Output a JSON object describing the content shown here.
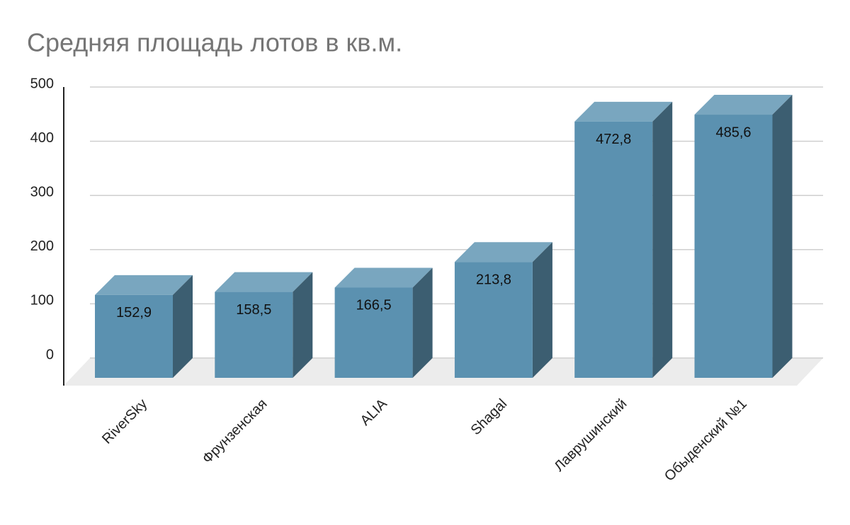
{
  "chart_data": {
    "type": "bar3d",
    "title": "Средняя площадь лотов в кв.м.",
    "categories": [
      "RiverSky",
      "Фрунзенская",
      "ALIA",
      "Shagal",
      "Лаврушинский",
      "Обыденский №1"
    ],
    "values": [
      152.9,
      158.5,
      166.5,
      213.8,
      472.8,
      485.6
    ],
    "value_labels": [
      "152,9",
      "158,5",
      "166,5",
      "213,8",
      "472,8",
      "485,6"
    ],
    "color": "#5b91b0",
    "top_color": "#79a6bf",
    "side_color": "#3c5e71",
    "ylim": [
      0,
      500
    ],
    "yticks": [
      0,
      100,
      200,
      300,
      400,
      500
    ],
    "grid": true
  }
}
